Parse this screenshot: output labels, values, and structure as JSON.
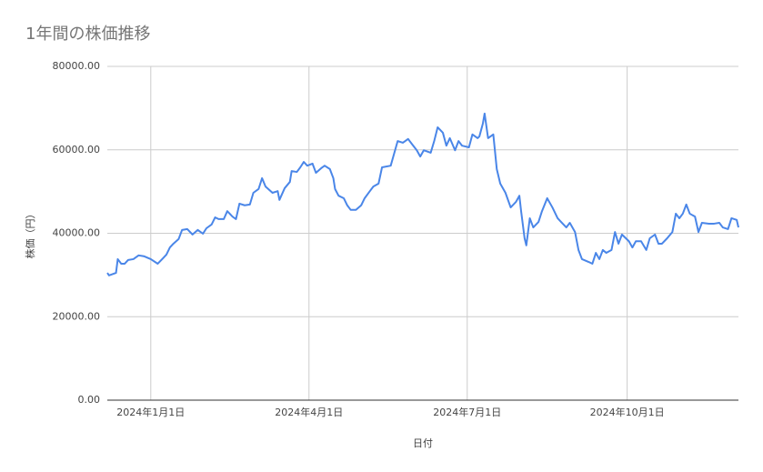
{
  "chart_data": {
    "type": "line",
    "title": "1年間の株価推移",
    "x_label": "日付",
    "y_label": "株価（円）",
    "color": "#4a86e8",
    "grid": true,
    "x": [
      "2023-12-07",
      "2023-12-08",
      "2023-12-12",
      "2023-12-13",
      "2023-12-15",
      "2023-12-17",
      "2023-12-19",
      "2023-12-22",
      "2023-12-25",
      "2023-12-28",
      "2024-01-01",
      "2024-01-05",
      "2024-01-08",
      "2024-01-10",
      "2024-01-12",
      "2024-01-14",
      "2024-01-17",
      "2024-01-19",
      "2024-01-22",
      "2024-01-25",
      "2024-01-28",
      "2024-01-31",
      "2024-02-02",
      "2024-02-05",
      "2024-02-07",
      "2024-02-09",
      "2024-02-12",
      "2024-02-14",
      "2024-02-17",
      "2024-02-19",
      "2024-02-21",
      "2024-02-24",
      "2024-02-27",
      "2024-02-29",
      "2024-03-03",
      "2024-03-05",
      "2024-03-07",
      "2024-03-11",
      "2024-03-14",
      "2024-03-15",
      "2024-03-18",
      "2024-03-21",
      "2024-03-22",
      "2024-03-25",
      "2024-03-27",
      "2024-03-29",
      "2024-03-31",
      "2024-04-03",
      "2024-04-05",
      "2024-04-08",
      "2024-04-10",
      "2024-04-13",
      "2024-04-15",
      "2024-04-16",
      "2024-04-18",
      "2024-04-21",
      "2024-04-23",
      "2024-04-25",
      "2024-04-28",
      "2024-05-01",
      "2024-05-03",
      "2024-05-06",
      "2024-05-08",
      "2024-05-11",
      "2024-05-13",
      "2024-05-18",
      "2024-05-22",
      "2024-05-25",
      "2024-05-28",
      "2024-05-30",
      "2024-06-02",
      "2024-06-04",
      "2024-06-06",
      "2024-06-10",
      "2024-06-12",
      "2024-06-14",
      "2024-06-17",
      "2024-06-19",
      "2024-06-21",
      "2024-06-24",
      "2024-06-26",
      "2024-06-28",
      "2024-07-02",
      "2024-07-04",
      "2024-07-07",
      "2024-07-08",
      "2024-07-10",
      "2024-07-11",
      "2024-07-13",
      "2024-07-16",
      "2024-07-18",
      "2024-07-20",
      "2024-07-23",
      "2024-07-26",
      "2024-07-29",
      "2024-07-31",
      "2024-08-01",
      "2024-08-03",
      "2024-08-04",
      "2024-08-06",
      "2024-08-08",
      "2024-08-11",
      "2024-08-13",
      "2024-08-16",
      "2024-08-19",
      "2024-08-22",
      "2024-08-24",
      "2024-08-27",
      "2024-08-29",
      "2024-09-01",
      "2024-09-03",
      "2024-09-05",
      "2024-09-09",
      "2024-09-11",
      "2024-09-13",
      "2024-09-15",
      "2024-09-17",
      "2024-09-19",
      "2024-09-22",
      "2024-09-24",
      "2024-09-26",
      "2024-09-28",
      "2024-10-02",
      "2024-10-04",
      "2024-10-06",
      "2024-10-09",
      "2024-10-12",
      "2024-10-14",
      "2024-10-17",
      "2024-10-19",
      "2024-10-21",
      "2024-10-24",
      "2024-10-27",
      "2024-10-29",
      "2024-10-31",
      "2024-11-02",
      "2024-11-04",
      "2024-11-06",
      "2024-11-09",
      "2024-11-11",
      "2024-11-13",
      "2024-11-17",
      "2024-11-20",
      "2024-11-23",
      "2024-11-25",
      "2024-11-28",
      "2024-11-30",
      "2024-12-03",
      "2024-12-04"
    ],
    "values": [
      30500,
      29900,
      30500,
      33800,
      32700,
      32700,
      33600,
      33800,
      34700,
      34500,
      33800,
      32700,
      34000,
      34900,
      36600,
      37500,
      38600,
      40800,
      41000,
      39700,
      40800,
      39900,
      41200,
      42100,
      43800,
      43400,
      43400,
      45300,
      44000,
      43400,
      47100,
      46700,
      46900,
      49700,
      50600,
      53200,
      51200,
      49700,
      50100,
      48000,
      50800,
      52300,
      54900,
      54700,
      55800,
      57100,
      56200,
      56700,
      54500,
      55600,
      56200,
      55400,
      53200,
      50600,
      49000,
      48400,
      46700,
      45600,
      45600,
      46700,
      48400,
      50100,
      51200,
      51900,
      55800,
      56200,
      62100,
      61700,
      62600,
      61500,
      59900,
      58400,
      59900,
      59300,
      62100,
      65400,
      64100,
      61000,
      62800,
      59900,
      62100,
      61000,
      60600,
      63700,
      62800,
      63200,
      66300,
      68700,
      62800,
      63700,
      55400,
      51900,
      49700,
      46200,
      47500,
      49000,
      45300,
      38800,
      37100,
      43600,
      41400,
      42700,
      45300,
      48400,
      46200,
      43600,
      42700,
      41400,
      42500,
      40300,
      36000,
      33800,
      33100,
      32700,
      35300,
      33800,
      36000,
      35300,
      36000,
      40300,
      37500,
      39700,
      38100,
      36600,
      38100,
      38100,
      36000,
      38800,
      39700,
      37500,
      37500,
      38800,
      40300,
      44700,
      43600,
      44700,
      46900,
      44700,
      44000,
      40300,
      42500,
      42300,
      42300,
      42500,
      41400,
      41000,
      43600,
      43200,
      41400
    ],
    "xlim": [
      "2023-12-07",
      "2024-12-04"
    ],
    "xticks": [
      {
        "value": "2024-01-01",
        "label": "2024年1月1日"
      },
      {
        "value": "2024-04-01",
        "label": "2024年4月1日"
      },
      {
        "value": "2024-07-01",
        "label": "2024年7月1日"
      },
      {
        "value": "2024-10-01",
        "label": "2024年10月1日"
      }
    ],
    "ylim": [
      0,
      80000
    ],
    "yticks": [
      {
        "value": 0,
        "label": "0.00"
      },
      {
        "value": 20000,
        "label": "20000.00"
      },
      {
        "value": 40000,
        "label": "40000.00"
      },
      {
        "value": 60000,
        "label": "60000.00"
      },
      {
        "value": 80000,
        "label": "80000.00"
      }
    ]
  }
}
